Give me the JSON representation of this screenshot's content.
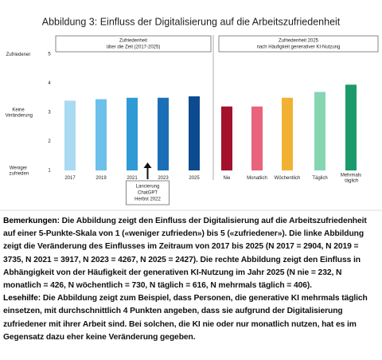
{
  "figure_title": "Abbildung 3: Einfluss der Digitalisierung auf die Arbeitszufriedenheit",
  "chart_data": [
    {
      "type": "bar",
      "title": "Zufriedenheit",
      "subtitle": "über die Zeit (2017-2025)",
      "categories": [
        "2017",
        "2019",
        "2021",
        "2023",
        "2025"
      ],
      "values": [
        3.4,
        3.45,
        3.5,
        3.5,
        3.55
      ],
      "colors": [
        "#a9daf2",
        "#6cc0ea",
        "#2f9ad6",
        "#1a6fb6",
        "#0d4b90"
      ],
      "ylim": [
        1,
        5
      ],
      "yticks": [
        1,
        2,
        3,
        4,
        5
      ],
      "y_labels": [
        {
          "value": 5,
          "label": "Zufriedener"
        },
        {
          "value": 3,
          "label": "Keine Veränderung"
        },
        {
          "value": 1,
          "label": "Weniger zufrieden"
        }
      ],
      "annotation": {
        "x": "2022",
        "text": [
          "Lancierung",
          "ChatGPT",
          "Herbst 2022"
        ]
      }
    },
    {
      "type": "bar",
      "title": "Zufriedenheit 2025",
      "subtitle": "nach Häufigkeit generativer KI-Nutzung",
      "categories": [
        "Nie",
        "Monatlich",
        "Wöchentlich",
        "Täglich",
        "Mehrmals täglich"
      ],
      "values": [
        3.2,
        3.2,
        3.5,
        3.7,
        3.95
      ],
      "colors": [
        "#a3112c",
        "#e8637c",
        "#f1b233",
        "#84d6b2",
        "#1b9a6b"
      ],
      "ylim": [
        1,
        5
      ]
    }
  ],
  "notes": {
    "label": "Bemerkungen:",
    "text": "Die Abbildung zeigt den Einfluss der Digitalisierung auf die Arbeitszufriedenheit auf einer 5-Punkte-Skala von 1 («weniger zufrieden») bis 5 («zufriedener»). Die linke Abbildung zeigt die Veränderung des Einflusses im Zeitraum von 2017 bis 2025 (N 2017 = 2904, N 2019 = 3735, N 2021 = 3917, N 2023 = 4267, N 2025 = 2427). Die rechte Abbildung zeigt den Einfluss in Abhängigkeit von der Häufigkeit der generativen KI-Nutzung im Jahr 2025 (N nie = 232, N monatlich = 426, N wöchentlich = 730, N täglich = 616, N mehrmals täglich = 406)."
  },
  "reading_aid": {
    "label": "Lesehilfe:",
    "text": "Die Abbildung zeigt zum Beispiel, dass Personen, die generative KI mehrmals täglich einsetzen, mit durchschnittlich 4 Punkten angeben, dass sie aufgrund der Digitalisierung zufriedener mit ihrer Arbeit sind. Bei solchen, die KI nie oder nur monatlich nutzen, hat es im Gegensatz dazu eher keine Veränderung gegeben."
  }
}
